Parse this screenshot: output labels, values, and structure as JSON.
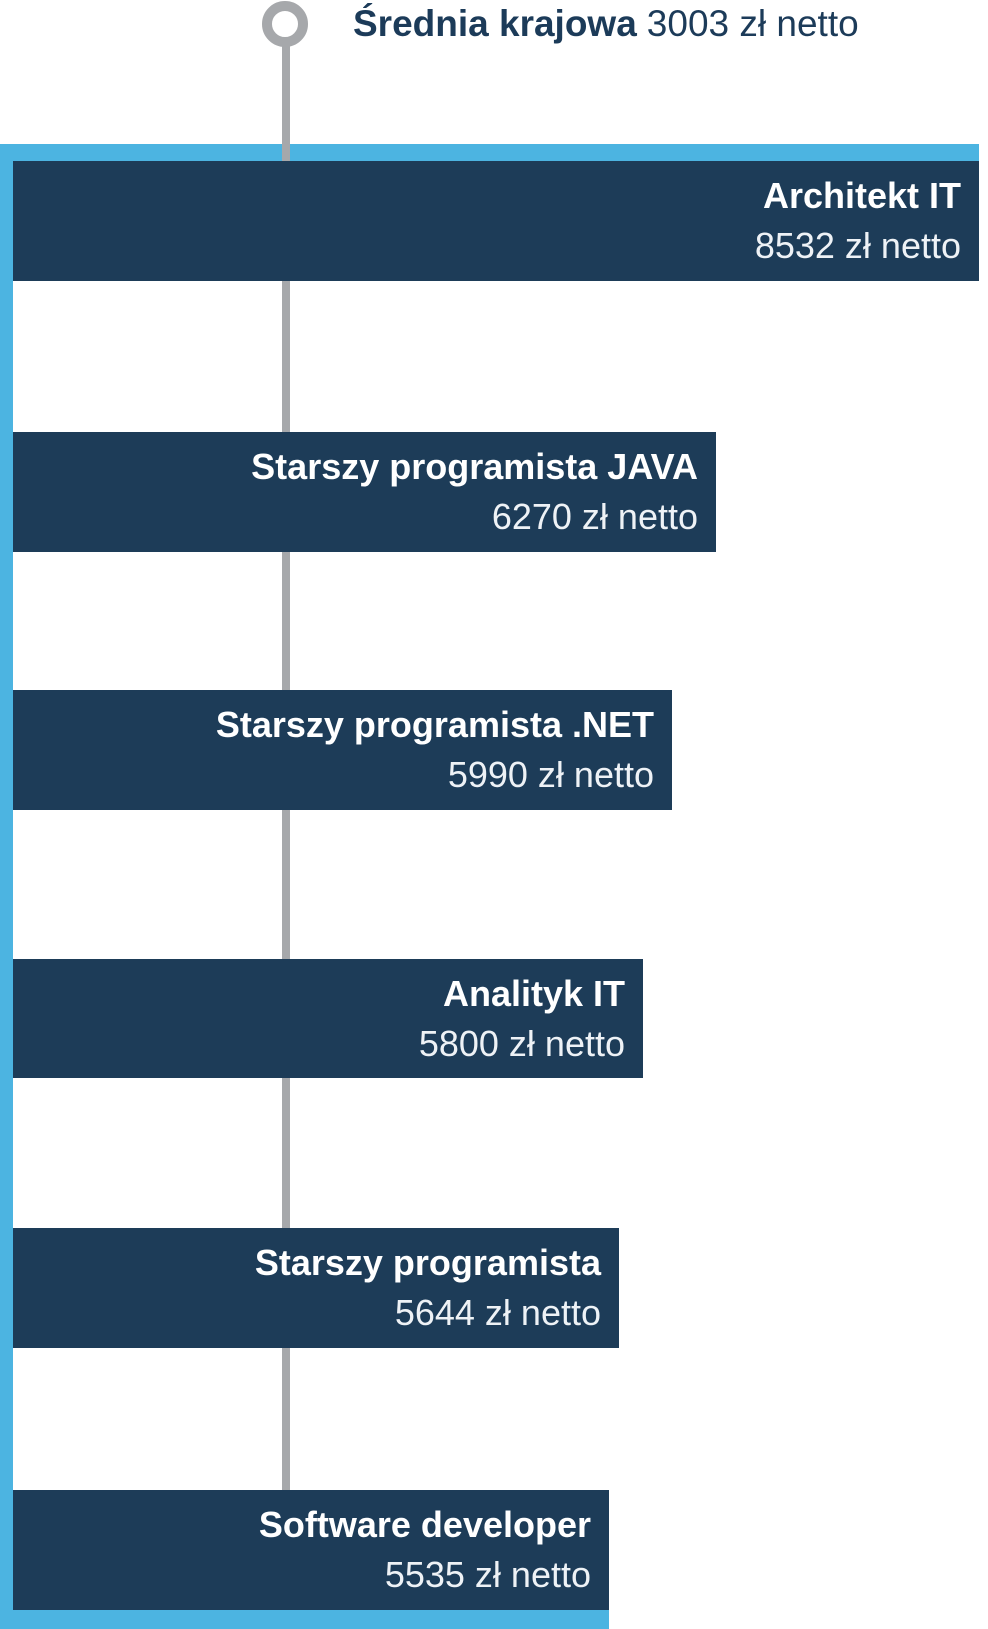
{
  "colors": {
    "navy": "#1d3c58",
    "blue": "#4cb4e1",
    "gray": "#a6a8ab",
    "text_navy": "#1c3b59",
    "bar_text": "#ffffff",
    "bar_value_text": "#eef2f6"
  },
  "average": {
    "label": "Średnia krajowa",
    "value_text": "3003 zł netto"
  },
  "chart_data": {
    "type": "bar",
    "orientation": "horizontal",
    "unit": "zł netto",
    "reference": {
      "label": "Średnia krajowa",
      "value": 3003,
      "text": "Średnia krajowa 3003 zł netto"
    },
    "categories": [
      "Architekt IT",
      "Starszy programista JAVA",
      "Starszy programista .NET",
      "Analityk IT",
      "Starszy programista",
      "Software developer"
    ],
    "values": [
      8532,
      6270,
      5990,
      5800,
      5644,
      5535
    ],
    "bars": [
      {
        "label": "Architekt IT",
        "value": 8532,
        "value_text": "8532 zł netto"
      },
      {
        "label": "Starszy programista JAVA",
        "value": 6270,
        "value_text": "6270 zł netto"
      },
      {
        "label": "Starszy programista .NET",
        "value": 5990,
        "value_text": "5990 zł netto"
      },
      {
        "label": "Analityk IT",
        "value": 5800,
        "value_text": "5800 zł netto"
      },
      {
        "label": "Starszy programista",
        "value": 5644,
        "value_text": "5644 zł netto"
      },
      {
        "label": "Software developer",
        "value": 5535,
        "value_text": "5535 zł netto"
      }
    ],
    "layout": {
      "value_labels_inside_bars": true,
      "bars_aligned_left": true,
      "grid": false,
      "axis_labels": false
    }
  }
}
